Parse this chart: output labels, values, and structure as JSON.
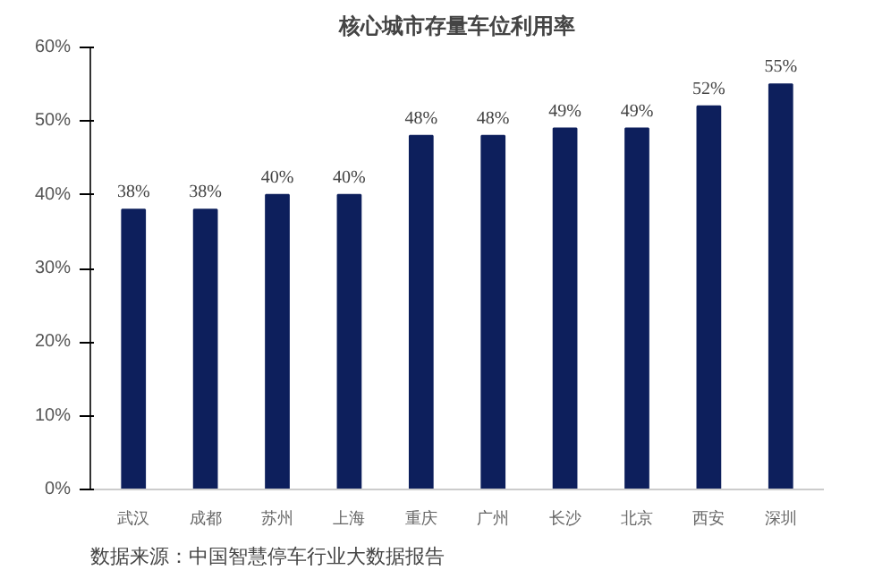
{
  "chart_data": {
    "type": "bar",
    "title": "核心城市存量车位利用率",
    "categories": [
      "武汉",
      "成都",
      "苏州",
      "上海",
      "重庆",
      "广州",
      "长沙",
      "北京",
      "西安",
      "深圳"
    ],
    "values": [
      38,
      38,
      40,
      40,
      48,
      48,
      49,
      49,
      52,
      55
    ],
    "value_labels": [
      "38%",
      "38%",
      "40%",
      "40%",
      "48%",
      "48%",
      "49%",
      "49%",
      "52%",
      "55%"
    ],
    "color": "#0d1f5c",
    "ylim": [
      0,
      60
    ],
    "yticks": [
      {
        "value": 0,
        "label": "0%"
      },
      {
        "value": 10,
        "label": "10%"
      },
      {
        "value": 20,
        "label": "20%"
      },
      {
        "value": 30,
        "label": "30%"
      },
      {
        "value": 40,
        "label": "40%"
      },
      {
        "value": 50,
        "label": "50%"
      },
      {
        "value": 60,
        "label": "60%"
      }
    ],
    "grid": false,
    "annotations": [
      "数据来源：中国智慧停车行业大数据报告"
    ]
  }
}
